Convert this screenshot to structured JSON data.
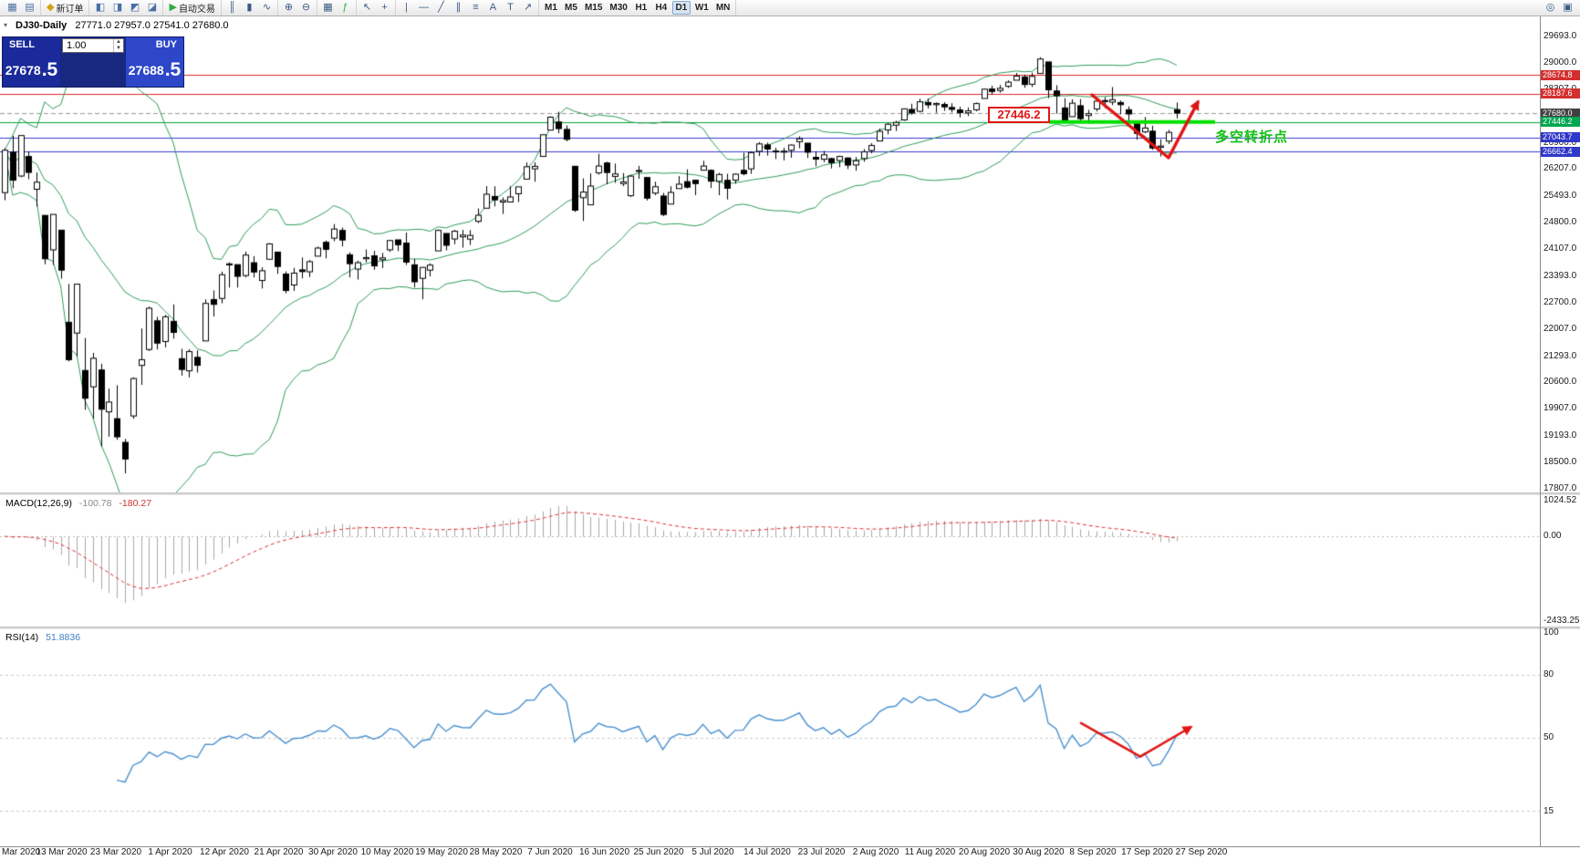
{
  "toolbar": {
    "groups": [
      {
        "items": [
          {
            "name": "new-chart-icon",
            "glyph": "▦",
            "color": "#4a6fa5"
          },
          {
            "name": "profiles-icon",
            "glyph": "▤",
            "color": "#4a6fa5"
          }
        ]
      },
      {
        "items": [
          {
            "name": "new-order-button",
            "icon_glyph": "◆",
            "icon_color": "#d4a017",
            "label": "新订单"
          }
        ]
      },
      {
        "items": [
          {
            "name": "market-watch-icon",
            "glyph": "◧",
            "color": "#4a6fa5"
          },
          {
            "name": "data-window-icon",
            "glyph": "◨",
            "color": "#4a6fa5"
          },
          {
            "name": "navigator-icon",
            "glyph": "◩",
            "color": "#4a6fa5"
          },
          {
            "name": "terminal-icon",
            "glyph": "◪",
            "color": "#4a6fa5"
          }
        ]
      },
      {
        "items": [
          {
            "name": "autotrading-button",
            "icon_glyph": "▶",
            "icon_color": "#2fae44",
            "label": "自动交易"
          }
        ]
      },
      {
        "items": [
          {
            "name": "bar-chart-icon",
            "glyph": "║"
          },
          {
            "name": "candlestick-chart-icon",
            "glyph": "▮"
          },
          {
            "name": "line-chart-icon",
            "glyph": "∿"
          }
        ]
      },
      {
        "items": [
          {
            "name": "zoom-in-icon",
            "glyph": "⊕"
          },
          {
            "name": "zoom-out-icon",
            "glyph": "⊖"
          }
        ]
      },
      {
        "items": [
          {
            "name": "tile-windows-icon",
            "glyph": "▦"
          },
          {
            "name": "indicators-icon",
            "glyph": "ƒ",
            "color": "#2fae44"
          }
        ]
      },
      {
        "items": [
          {
            "name": "cursor-icon",
            "glyph": "↖"
          },
          {
            "name": "crosshair-icon",
            "glyph": "+"
          }
        ]
      },
      {
        "items": [
          {
            "name": "vertical-line-icon",
            "glyph": "|"
          },
          {
            "name": "horizontal-line-icon",
            "glyph": "—"
          },
          {
            "name": "trendline-icon",
            "glyph": "╱"
          },
          {
            "name": "channel-icon",
            "glyph": "∥"
          },
          {
            "name": "fibonacci-icon",
            "glyph": "≡"
          },
          {
            "name": "text-icon",
            "glyph": "A"
          },
          {
            "name": "label-icon",
            "glyph": "T"
          },
          {
            "name": "arrows-icon",
            "glyph": "↗"
          }
        ]
      },
      {
        "cls": "tf",
        "items": [
          {
            "name": "timeframe-m1-button",
            "label": "M1"
          },
          {
            "name": "timeframe-m5-button",
            "label": "M5"
          },
          {
            "name": "timeframe-m15-button",
            "label": "M15"
          },
          {
            "name": "timeframe-m30-button",
            "label": "M30"
          },
          {
            "name": "timeframe-h1-button",
            "label": "H1"
          },
          {
            "name": "timeframe-h4-button",
            "label": "H4"
          },
          {
            "name": "timeframe-d1-button",
            "label": "D1",
            "active": true
          },
          {
            "name": "timeframe-w1-button",
            "label": "W1"
          },
          {
            "name": "timeframe-mn-button",
            "label": "MN"
          }
        ]
      },
      {
        "cls": "right",
        "items": [
          {
            "name": "search-icon",
            "glyph": "◎"
          },
          {
            "name": "print-icon",
            "glyph": "▣"
          }
        ]
      }
    ]
  },
  "chart": {
    "symbol_period": "DJ30-Daily",
    "ohlc": "27771.0 27957.0 27541.0 27680.0"
  },
  "trade_panel": {
    "sell_label": "SELL",
    "buy_label": "BUY",
    "volume": "1.00",
    "sell_price_main": "27678",
    "sell_price_frac": ".5",
    "buy_price_main": "27688",
    "buy_price_frac": ".5"
  },
  "chart_data": {
    "type": "candlestick",
    "symbol": "DJ30",
    "timeframe": "Daily",
    "title": "DJ30-Daily 27771.0 27957.0 27541.0 27680.0",
    "price_range": {
      "top": 29693.0,
      "bottom": 17807.0
    },
    "y_axis_labels": [
      "29693.0",
      "29000.0",
      "28307.0",
      "27614.0",
      "26900.0",
      "26207.0",
      "25493.0",
      "24800.0",
      "24107.0",
      "23393.0",
      "22700.0",
      "22007.0",
      "21293.0",
      "20600.0",
      "19907.0",
      "19193.0",
      "18500.0",
      "17807.0"
    ],
    "x_axis_labels": [
      "Mar 2020",
      "13 Mar 2020",
      "23 Mar 2020",
      "1 Apr 2020",
      "12 Apr 2020",
      "21 Apr 2020",
      "30 Apr 2020",
      "10 May 2020",
      "19 May 2020",
      "28 May 2020",
      "7 Jun 2020",
      "16 Jun 2020",
      "25 Jun 2020",
      "5 Jul 2020",
      "14 Jul 2020",
      "23 Jul 2020",
      "2 Aug 2020",
      "11 Aug 2020",
      "20 Aug 2020",
      "30 Aug 2020",
      "8 Sep 2020",
      "17 Sep 2020",
      "27 Sep 2020"
    ],
    "overlays": {
      "bollinger": {
        "period": 20,
        "deviation": 2,
        "color": "#2e9b57"
      }
    },
    "hlines": [
      {
        "price": 28674.8,
        "label": "28674.8",
        "color": "#dd2a2a",
        "tag_bg": "#d32f2f",
        "style": "solid"
      },
      {
        "price": 28187.6,
        "label": "28187.6",
        "color": "#dd2a2a",
        "tag_bg": "#d32f2f",
        "style": "solid"
      },
      {
        "price": 27680.0,
        "label": "27680.0",
        "color": "#999999",
        "tag_bg": "#404040",
        "style": "dashed"
      },
      {
        "price": 27446.2,
        "label": "27446.2",
        "color": "#00a32e",
        "tag_bg": "#00a651",
        "style": "solid"
      },
      {
        "price": 27043.7,
        "label": "27043.7",
        "color": "#3a3ad0",
        "tag_bg": "#3038c8",
        "style": "solid"
      },
      {
        "price": 26662.4,
        "label": "26662.4",
        "color": "#3a3ad0",
        "tag_bg": "#3038c8",
        "style": "solid"
      }
    ],
    "highlight_segment": {
      "price": 27446.2,
      "color": "#00e000"
    },
    "annotations": {
      "price_note": "27446.2",
      "turning_point": "多空转折点"
    },
    "indicators": {
      "macd": {
        "name": "MACD(12,26,9)",
        "value_main": "-100.78",
        "value_signal": "-180.27",
        "axis_labels": [
          "1024.52",
          "0.00",
          "-2433.25"
        ]
      },
      "rsi": {
        "name": "RSI(14)",
        "value": "51.8836",
        "axis_labels": [
          "100",
          "80",
          "50",
          "15"
        ],
        "levels": [
          80,
          50,
          15
        ]
      }
    },
    "candles": [
      [
        25590,
        26762,
        25390,
        26703
      ],
      [
        26650,
        27084,
        25706,
        25917
      ],
      [
        26026,
        27102,
        25996,
        27090
      ],
      [
        26540,
        26671,
        25943,
        26121
      ],
      [
        25679,
        26121,
        25226,
        25864
      ],
      [
        24992,
        25000,
        23706,
        23851
      ],
      [
        24086,
        25020,
        23690,
        25018
      ],
      [
        24604,
        24604,
        23328,
        23553
      ],
      [
        22184,
        23189,
        21154,
        21200
      ],
      [
        21900,
        23185,
        21285,
        23185
      ],
      [
        20917,
        21768,
        19882,
        20188
      ],
      [
        20487,
        21379,
        19649,
        21237
      ],
      [
        20930,
        21093,
        18917,
        19898
      ],
      [
        19830,
        20442,
        19177,
        20087
      ],
      [
        19650,
        20531,
        19094,
        19173
      ],
      [
        19028,
        19121,
        18213,
        18591
      ],
      [
        19722,
        20737,
        19649,
        20704
      ],
      [
        21050,
        22019,
        20538,
        21200
      ],
      [
        21468,
        22595,
        21427,
        22552
      ],
      [
        22221,
        22327,
        21469,
        21636
      ],
      [
        21678,
        22378,
        21522,
        22327
      ],
      [
        22208,
        22653,
        21751,
        21917
      ],
      [
        21227,
        21487,
        20784,
        20943
      ],
      [
        20907,
        21477,
        20735,
        21413
      ],
      [
        21262,
        21447,
        20863,
        21052
      ],
      [
        21693,
        22783,
        21693,
        22679
      ],
      [
        22782,
        23021,
        22335,
        22653
      ],
      [
        22810,
        23513,
        22682,
        23433
      ],
      [
        23690,
        23760,
        23095,
        23719
      ],
      [
        23698,
        23699,
        23095,
        23390
      ],
      [
        23411,
        24040,
        23361,
        23949
      ],
      [
        23748,
        23921,
        23360,
        23504
      ],
      [
        23282,
        23627,
        23071,
        23537
      ],
      [
        23839,
        24264,
        23839,
        24242
      ],
      [
        24028,
        24028,
        23456,
        23650
      ],
      [
        23452,
        23520,
        22941,
        23018
      ],
      [
        23163,
        23613,
        23009,
        23475
      ],
      [
        23560,
        23885,
        23335,
        23515
      ],
      [
        23510,
        23816,
        23371,
        23775
      ],
      [
        23920,
        24173,
        23920,
        24133
      ],
      [
        24284,
        24329,
        23862,
        24101
      ],
      [
        24394,
        24764,
        24312,
        24633
      ],
      [
        24597,
        24671,
        24175,
        24345
      ],
      [
        23957,
        24020,
        23361,
        23723
      ],
      [
        23581,
        23800,
        23306,
        23749
      ],
      [
        23851,
        24094,
        23755,
        23883
      ],
      [
        23930,
        24060,
        23562,
        23664
      ],
      [
        23827,
        24006,
        23608,
        23875
      ],
      [
        24087,
        24349,
        24032,
        24331
      ],
      [
        24349,
        24349,
        24053,
        24221
      ],
      [
        24264,
        24541,
        23691,
        23764
      ],
      [
        23693,
        23853,
        23095,
        23247
      ],
      [
        23338,
        23635,
        22789,
        23625
      ],
      [
        23553,
        23733,
        23390,
        23685
      ],
      [
        24059,
        24625,
        24059,
        24597
      ],
      [
        24517,
        24517,
        24073,
        24206
      ],
      [
        24372,
        24612,
        24235,
        24575
      ],
      [
        24428,
        24610,
        24144,
        24474
      ],
      [
        24368,
        24606,
        24215,
        24465
      ],
      [
        24835,
        25176,
        24793,
        24995
      ],
      [
        25180,
        25759,
        25180,
        25548
      ],
      [
        25490,
        25757,
        25228,
        25400
      ],
      [
        25342,
        25463,
        25031,
        25383
      ],
      [
        25343,
        25760,
        25343,
        25475
      ],
      [
        25560,
        25743,
        25342,
        25742
      ],
      [
        25945,
        26384,
        25945,
        26269
      ],
      [
        26216,
        26384,
        25876,
        26281
      ],
      [
        26542,
        27120,
        26542,
        27110
      ],
      [
        27232,
        27596,
        27232,
        27572
      ],
      [
        27447,
        27714,
        27151,
        27272
      ],
      [
        27251,
        27355,
        26938,
        26989
      ],
      [
        26282,
        26294,
        25082,
        25128
      ],
      [
        25457,
        25965,
        24843,
        25605
      ],
      [
        25270,
        26094,
        25270,
        25763
      ],
      [
        26108,
        26611,
        26064,
        26289
      ],
      [
        26369,
        26400,
        25811,
        26119
      ],
      [
        26016,
        26355,
        25848,
        26080
      ],
      [
        25826,
        26104,
        25759,
        25871
      ],
      [
        25509,
        26059,
        25475,
        26024
      ],
      [
        26171,
        26293,
        25953,
        26156
      ],
      [
        25987,
        26003,
        25383,
        25445
      ],
      [
        25577,
        25878,
        25522,
        25745
      ],
      [
        25501,
        25584,
        24971,
        25015
      ],
      [
        25290,
        25758,
        25290,
        25595
      ],
      [
        25696,
        26025,
        25696,
        25812
      ],
      [
        25879,
        26204,
        25700,
        25734
      ],
      [
        25916,
        25928,
        25523,
        25827
      ],
      [
        26179,
        26424,
        26179,
        26287
      ],
      [
        26175,
        26200,
        25710,
        25890
      ],
      [
        25886,
        26109,
        25523,
        26067
      ],
      [
        25913,
        26086,
        25412,
        25706
      ],
      [
        25920,
        26095,
        25822,
        26075
      ],
      [
        26176,
        26639,
        26044,
        26085
      ],
      [
        26214,
        26674,
        26082,
        26642
      ],
      [
        26675,
        26918,
        26550,
        26870
      ],
      [
        26843,
        26905,
        26563,
        26734
      ],
      [
        26683,
        26769,
        26472,
        26671
      ],
      [
        26654,
        26769,
        26437,
        26680
      ],
      [
        26704,
        26855,
        26507,
        26840
      ],
      [
        26929,
        27071,
        26757,
        27005
      ],
      [
        26890,
        26890,
        26500,
        26652
      ],
      [
        26517,
        26671,
        26279,
        26469
      ],
      [
        26467,
        26687,
        26390,
        26584
      ],
      [
        26484,
        26508,
        26224,
        26379
      ],
      [
        26433,
        26561,
        26259,
        26539
      ],
      [
        26501,
        26513,
        26210,
        26313
      ],
      [
        26317,
        26525,
        26166,
        26428
      ],
      [
        26486,
        26734,
        26401,
        26664
      ],
      [
        26698,
        26891,
        26621,
        26828
      ],
      [
        26946,
        27274,
        26946,
        27201
      ],
      [
        27236,
        27420,
        27120,
        27386
      ],
      [
        27363,
        27477,
        27210,
        27433
      ],
      [
        27500,
        27802,
        27477,
        27791
      ],
      [
        27775,
        27925,
        27637,
        27686
      ],
      [
        27726,
        28058,
        27701,
        27976
      ],
      [
        27958,
        28061,
        27801,
        27896
      ],
      [
        27901,
        27959,
        27686,
        27931
      ],
      [
        27908,
        27968,
        27738,
        27844
      ],
      [
        27827,
        27940,
        27694,
        27778
      ],
      [
        27762,
        27848,
        27566,
        27692
      ],
      [
        27687,
        27829,
        27601,
        27739
      ],
      [
        27767,
        27959,
        27726,
        27930
      ],
      [
        28064,
        28326,
        28064,
        28308
      ],
      [
        28313,
        28399,
        28168,
        28248
      ],
      [
        28274,
        28419,
        28214,
        28331
      ],
      [
        28383,
        28539,
        28340,
        28492
      ],
      [
        28543,
        28733,
        28543,
        28653
      ],
      [
        28630,
        28688,
        28345,
        28430
      ],
      [
        28438,
        28742,
        28366,
        28645
      ],
      [
        28721,
        29150,
        28721,
        29100
      ],
      [
        29024,
        29024,
        28074,
        28292
      ],
      [
        28261,
        28413,
        27664,
        28133
      ],
      [
        27815,
        28070,
        27448,
        27500
      ],
      [
        27585,
        28043,
        27585,
        27940
      ],
      [
        27873,
        28049,
        27458,
        27534
      ],
      [
        27616,
        27764,
        27402,
        27665
      ],
      [
        27789,
        28024,
        27724,
        27993
      ],
      [
        28009,
        28099,
        27808,
        27995
      ],
      [
        27969,
        28365,
        27888,
        28032
      ],
      [
        27958,
        28012,
        27645,
        27901
      ],
      [
        27768,
        27855,
        27447,
        27657
      ],
      [
        27406,
        27473,
        26983,
        27147
      ],
      [
        27186,
        27578,
        27151,
        27288
      ],
      [
        27204,
        27348,
        26715,
        26763
      ],
      [
        26783,
        26989,
        26537,
        26815
      ],
      [
        26941,
        27237,
        26866,
        27173
      ],
      [
        27771,
        27957,
        27541,
        27680
      ]
    ]
  }
}
